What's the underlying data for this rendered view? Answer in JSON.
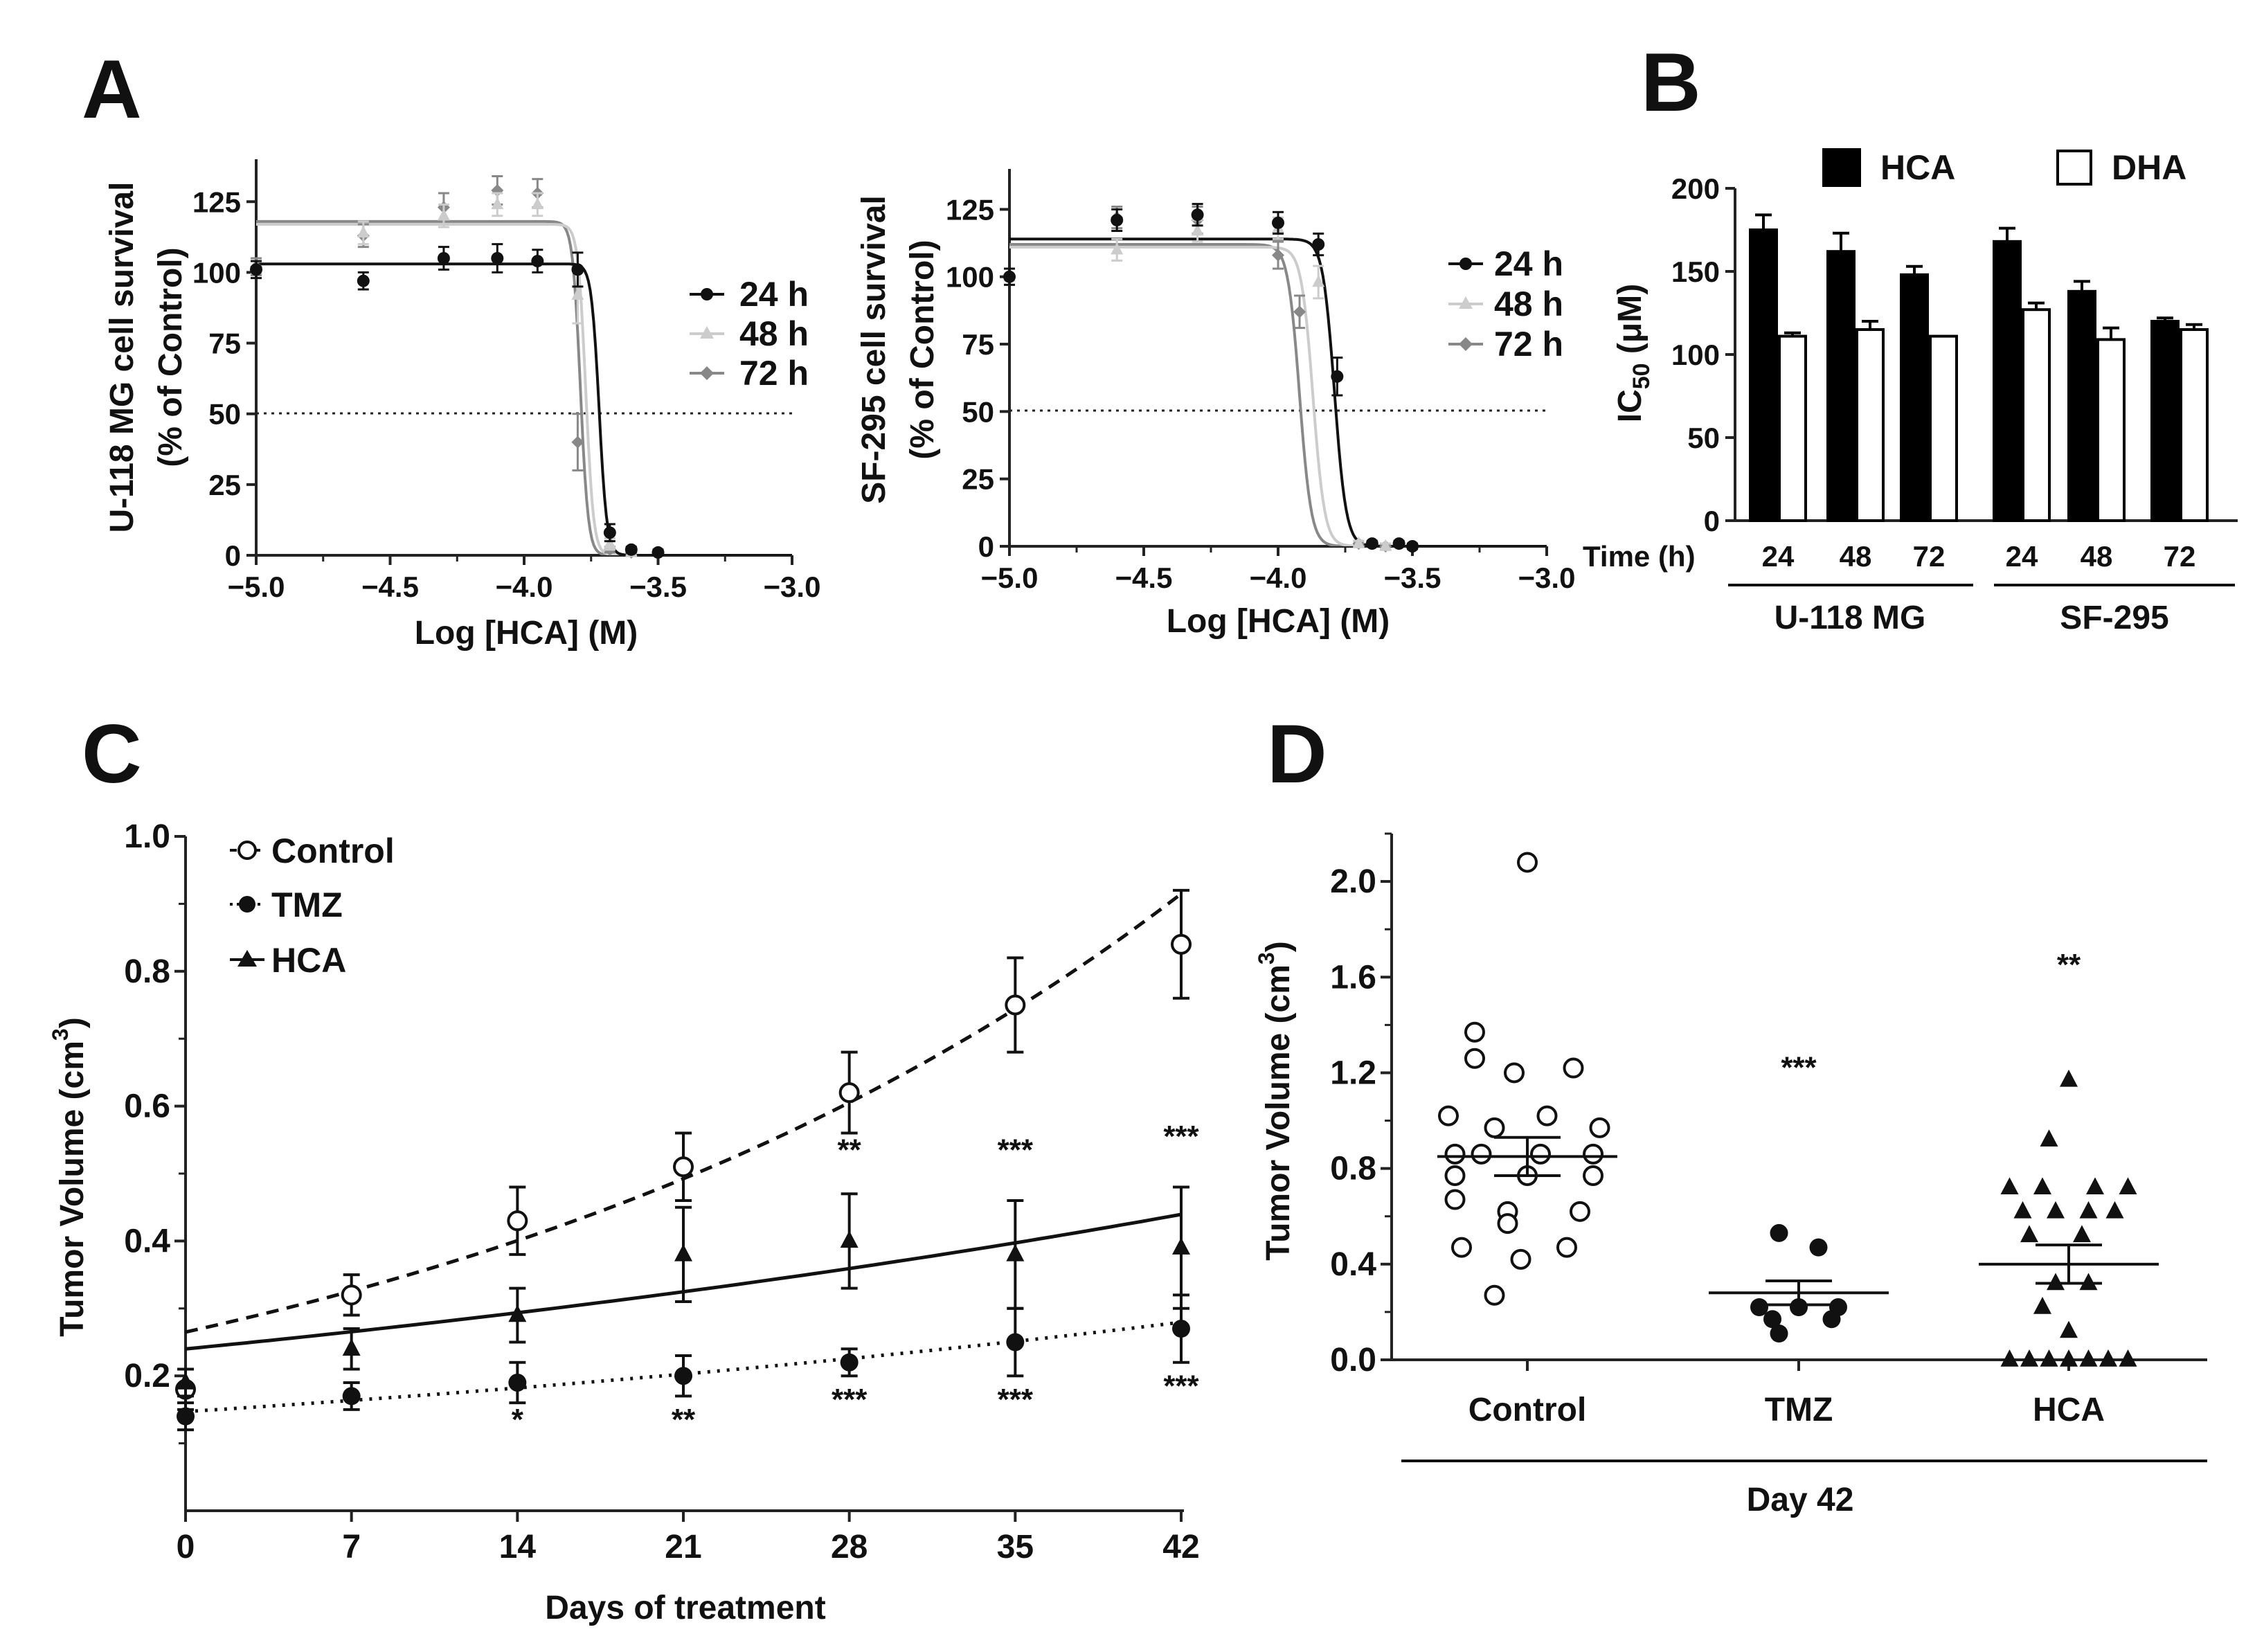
{
  "panels": {
    "A": "A",
    "B": "B",
    "C": "C",
    "D": "D"
  },
  "chart_data": [
    {
      "id": "A1",
      "type": "line",
      "xlabel": "Log [HCA] (M)",
      "ylabel_lines": [
        "U-118 MG cell survival",
        "(% of Control)"
      ],
      "xlim": [
        -5.0,
        -3.0
      ],
      "ylim": [
        0,
        140
      ],
      "xticks": [
        "−5.0",
        "−4.5",
        "−4.0",
        "−3.5",
        "−3.0"
      ],
      "yticks": [
        "0",
        "25",
        "50",
        "75",
        "100",
        "125"
      ],
      "reference_line": 50,
      "legend": [
        "24 h",
        "48 h",
        "72 h"
      ],
      "series": [
        {
          "name": "24 h",
          "color": "#111111",
          "marker": "circle",
          "top": 103,
          "ec50": -3.72,
          "hill": 30,
          "points": [
            [
              -5.0,
              101,
              3
            ],
            [
              -4.6,
              97,
              3
            ],
            [
              -4.3,
              105,
              4
            ],
            [
              -4.1,
              105,
              5
            ],
            [
              -3.95,
              104,
              4
            ],
            [
              -3.8,
              101,
              6
            ],
            [
              -3.68,
              8,
              3
            ],
            [
              -3.6,
              2,
              1
            ],
            [
              -3.5,
              1,
              1
            ]
          ]
        },
        {
          "name": "48 h",
          "color": "#cccccc",
          "marker": "triangle",
          "top": 117,
          "ec50": -3.77,
          "hill": 30,
          "points": [
            [
              -5.0,
              101,
              3
            ],
            [
              -4.6,
              114,
              4
            ],
            [
              -4.3,
              120,
              4
            ],
            [
              -4.1,
              124,
              4
            ],
            [
              -3.95,
              124,
              4
            ],
            [
              -3.8,
              92,
              10
            ],
            [
              -3.68,
              4,
              2
            ],
            [
              -3.6,
              1,
              1
            ]
          ]
        },
        {
          "name": "72 h",
          "color": "#888888",
          "marker": "diamond",
          "top": 118,
          "ec50": -3.79,
          "hill": 30,
          "points": [
            [
              -5.0,
              102,
              3
            ],
            [
              -4.6,
              113,
              4
            ],
            [
              -4.3,
              123,
              5
            ],
            [
              -4.1,
              129,
              5
            ],
            [
              -3.95,
              128,
              5
            ],
            [
              -3.8,
              40,
              10
            ],
            [
              -3.68,
              2,
              1
            ],
            [
              -3.6,
              1,
              1
            ]
          ]
        }
      ]
    },
    {
      "id": "A2",
      "type": "line",
      "xlabel": "Log [HCA] (M)",
      "ylabel_lines": [
        "SF-295 cell survival",
        "(% of Control)"
      ],
      "xlim": [
        -5.0,
        -3.0
      ],
      "ylim": [
        0,
        140
      ],
      "xticks": [
        "−5.0",
        "−4.5",
        "−4.0",
        "−3.5",
        "−3.0"
      ],
      "yticks": [
        "0",
        "25",
        "50",
        "75",
        "100",
        "125"
      ],
      "reference_line": 50,
      "legend": [
        "24 h",
        "48 h",
        "72 h"
      ],
      "series": [
        {
          "name": "24 h",
          "color": "#111111",
          "marker": "circle",
          "top": 114,
          "ec50": -3.79,
          "hill": 20,
          "points": [
            [
              -5.0,
              100,
              3
            ],
            [
              -4.6,
              121,
              4
            ],
            [
              -4.3,
              123,
              4
            ],
            [
              -4.0,
              120,
              4
            ],
            [
              -3.85,
              112,
              4
            ],
            [
              -3.78,
              63,
              7
            ],
            [
              -3.65,
              1,
              1
            ],
            [
              -3.55,
              1,
              1
            ],
            [
              -3.5,
              0,
              1
            ]
          ]
        },
        {
          "name": "48 h",
          "color": "#cccccc",
          "marker": "triangle",
          "top": 111,
          "ec50": -3.87,
          "hill": 20,
          "points": [
            [
              -5.0,
              100,
              3
            ],
            [
              -4.6,
              110,
              4
            ],
            [
              -4.3,
              117,
              4
            ],
            [
              -4.0,
              118,
              4
            ],
            [
              -3.85,
              98,
              6
            ],
            [
              -3.7,
              1,
              1
            ],
            [
              -3.6,
              0,
              1
            ]
          ]
        },
        {
          "name": "72 h",
          "color": "#888888",
          "marker": "diamond",
          "top": 112,
          "ec50": -3.92,
          "hill": 20,
          "points": [
            [
              -5.0,
              100,
              3
            ],
            [
              -4.6,
              122,
              4
            ],
            [
              -4.3,
              121,
              5
            ],
            [
              -4.0,
              108,
              5
            ],
            [
              -3.92,
              87,
              6
            ],
            [
              -3.7,
              1,
              1
            ],
            [
              -3.6,
              0,
              1
            ]
          ]
        }
      ]
    },
    {
      "id": "B",
      "type": "bar",
      "ylabel": "IC",
      "ylabel_sub": "50",
      "ylabel_tail": " (μM)",
      "ylim": [
        0,
        200
      ],
      "yticks": [
        "0",
        "50",
        "100",
        "150",
        "200"
      ],
      "x_title": "Time (h)",
      "categories": [
        "24",
        "48",
        "72",
        "24",
        "48",
        "72"
      ],
      "groups": [
        "U-118 MG",
        "SF-295"
      ],
      "series": [
        {
          "name": "HCA",
          "color": "#000000",
          "values": [
            175,
            162,
            148,
            168,
            138,
            120
          ],
          "errors": [
            9,
            11,
            5,
            8,
            6,
            2
          ]
        },
        {
          "name": "DHA",
          "color": "#ffffff",
          "values": [
            111,
            115,
            111,
            127,
            109,
            115
          ],
          "errors": [
            2,
            5,
            0,
            4,
            7,
            3
          ]
        }
      ]
    },
    {
      "id": "C",
      "type": "line",
      "xlabel": "Days of treatment",
      "ylabel": "Tumor Volume (cm",
      "ylabel_sup": "3",
      "ylabel_tail": ")",
      "xlim": [
        0,
        42
      ],
      "ylim": [
        0,
        1.0
      ],
      "xticks": [
        "0",
        "7",
        "14",
        "21",
        "28",
        "35",
        "42"
      ],
      "yticks": [
        "0.2",
        "0.4",
        "0.6",
        "0.8",
        "1.0"
      ],
      "series": [
        {
          "name": "Control",
          "marker": "open-circle",
          "line": "dashed",
          "fit": [
            0.265,
            0.0295
          ],
          "x": [
            0,
            7,
            14,
            21,
            28,
            35,
            42
          ],
          "y": [
            0.18,
            0.32,
            0.43,
            0.51,
            0.62,
            0.75,
            0.84
          ],
          "err": [
            0.03,
            0.03,
            0.05,
            0.05,
            0.06,
            0.07,
            0.08
          ]
        },
        {
          "name": "TMZ",
          "marker": "filled-circle",
          "line": "dotted",
          "fit": [
            0.147,
            0.0153
          ],
          "x": [
            0,
            7,
            14,
            21,
            28,
            35,
            42
          ],
          "y": [
            0.14,
            0.17,
            0.19,
            0.2,
            0.22,
            0.25,
            0.27
          ],
          "err": [
            0.02,
            0.02,
            0.03,
            0.03,
            0.02,
            0.05,
            0.05
          ]
        },
        {
          "name": "HCA",
          "marker": "filled-triangle",
          "line": "solid",
          "fit": [
            0.24,
            0.0144
          ],
          "x": [
            0,
            7,
            14,
            21,
            28,
            35,
            42
          ],
          "y": [
            0.19,
            0.24,
            0.29,
            0.38,
            0.4,
            0.38,
            0.39
          ],
          "err": [
            0.02,
            0.03,
            0.04,
            0.07,
            0.07,
            0.08,
            0.09
          ]
        }
      ],
      "significance": [
        {
          "x": 28,
          "y": 0.52,
          "label": "**"
        },
        {
          "x": 35,
          "y": 0.52,
          "label": "***"
        },
        {
          "x": 42,
          "y": 0.54,
          "label": "***"
        },
        {
          "x": 14,
          "y": 0.12,
          "label": "*"
        },
        {
          "x": 21,
          "y": 0.12,
          "label": "**"
        },
        {
          "x": 28,
          "y": 0.15,
          "label": "***"
        },
        {
          "x": 35,
          "y": 0.15,
          "label": "***"
        },
        {
          "x": 42,
          "y": 0.17,
          "label": "***"
        }
      ]
    },
    {
      "id": "D",
      "type": "scatter",
      "ylabel": "Tumor Volume (cm",
      "ylabel_sup": "3",
      "ylabel_tail": ")",
      "ylim": [
        0,
        2.2
      ],
      "yticks": [
        "0.0",
        "0.4",
        "0.8",
        "1.2",
        "1.6",
        "2.0"
      ],
      "categories": [
        "Control",
        "TMZ",
        "HCA"
      ],
      "group_label": "Day 42",
      "groups": [
        {
          "name": "Control",
          "marker": "open-circle",
          "mean": 0.85,
          "sem": 0.08,
          "sig": "",
          "points": [
            [
              0,
              2.08
            ],
            [
              -8,
              1.37
            ],
            [
              -8,
              1.26
            ],
            [
              -2,
              1.2
            ],
            [
              7,
              1.22
            ],
            [
              -12,
              1.02
            ],
            [
              3,
              1.02
            ],
            [
              -5,
              0.97
            ],
            [
              11,
              0.97
            ],
            [
              -11,
              0.86
            ],
            [
              -7,
              0.86
            ],
            [
              2,
              0.86
            ],
            [
              10,
              0.86
            ],
            [
              -11,
              0.77
            ],
            [
              0,
              0.77
            ],
            [
              10,
              0.77
            ],
            [
              -11,
              0.67
            ],
            [
              -3,
              0.62
            ],
            [
              8,
              0.62
            ],
            [
              -3,
              0.57
            ],
            [
              -10,
              0.47
            ],
            [
              6,
              0.47
            ],
            [
              -1,
              0.42
            ],
            [
              -5,
              0.27
            ]
          ]
        },
        {
          "name": "TMZ",
          "marker": "filled-circle",
          "mean": 0.28,
          "sem": 0.05,
          "sig": "***",
          "points": [
            [
              -3,
              0.53
            ],
            [
              3,
              0.47
            ],
            [
              -6,
              0.22
            ],
            [
              0,
              0.22
            ],
            [
              6,
              0.22
            ],
            [
              -4,
              0.17
            ],
            [
              5,
              0.17
            ],
            [
              -3,
              0.11
            ]
          ]
        },
        {
          "name": "HCA",
          "marker": "filled-triangle",
          "mean": 0.4,
          "sem": 0.08,
          "sig": "**",
          "points": [
            [
              0,
              1.17
            ],
            [
              -3,
              0.92
            ],
            [
              -9,
              0.72
            ],
            [
              -4,
              0.72
            ],
            [
              4,
              0.72
            ],
            [
              9,
              0.72
            ],
            [
              -7,
              0.62
            ],
            [
              -2,
              0.62
            ],
            [
              3,
              0.62
            ],
            [
              7,
              0.62
            ],
            [
              -6,
              0.52
            ],
            [
              2,
              0.52
            ],
            [
              -2,
              0.32
            ],
            [
              3,
              0.32
            ],
            [
              -4,
              0.22
            ],
            [
              0,
              0.12
            ],
            [
              -9,
              0
            ],
            [
              -6,
              0
            ],
            [
              -3,
              0
            ],
            [
              0,
              0
            ],
            [
              3,
              0
            ],
            [
              6,
              0
            ],
            [
              9,
              0
            ]
          ]
        }
      ]
    }
  ]
}
